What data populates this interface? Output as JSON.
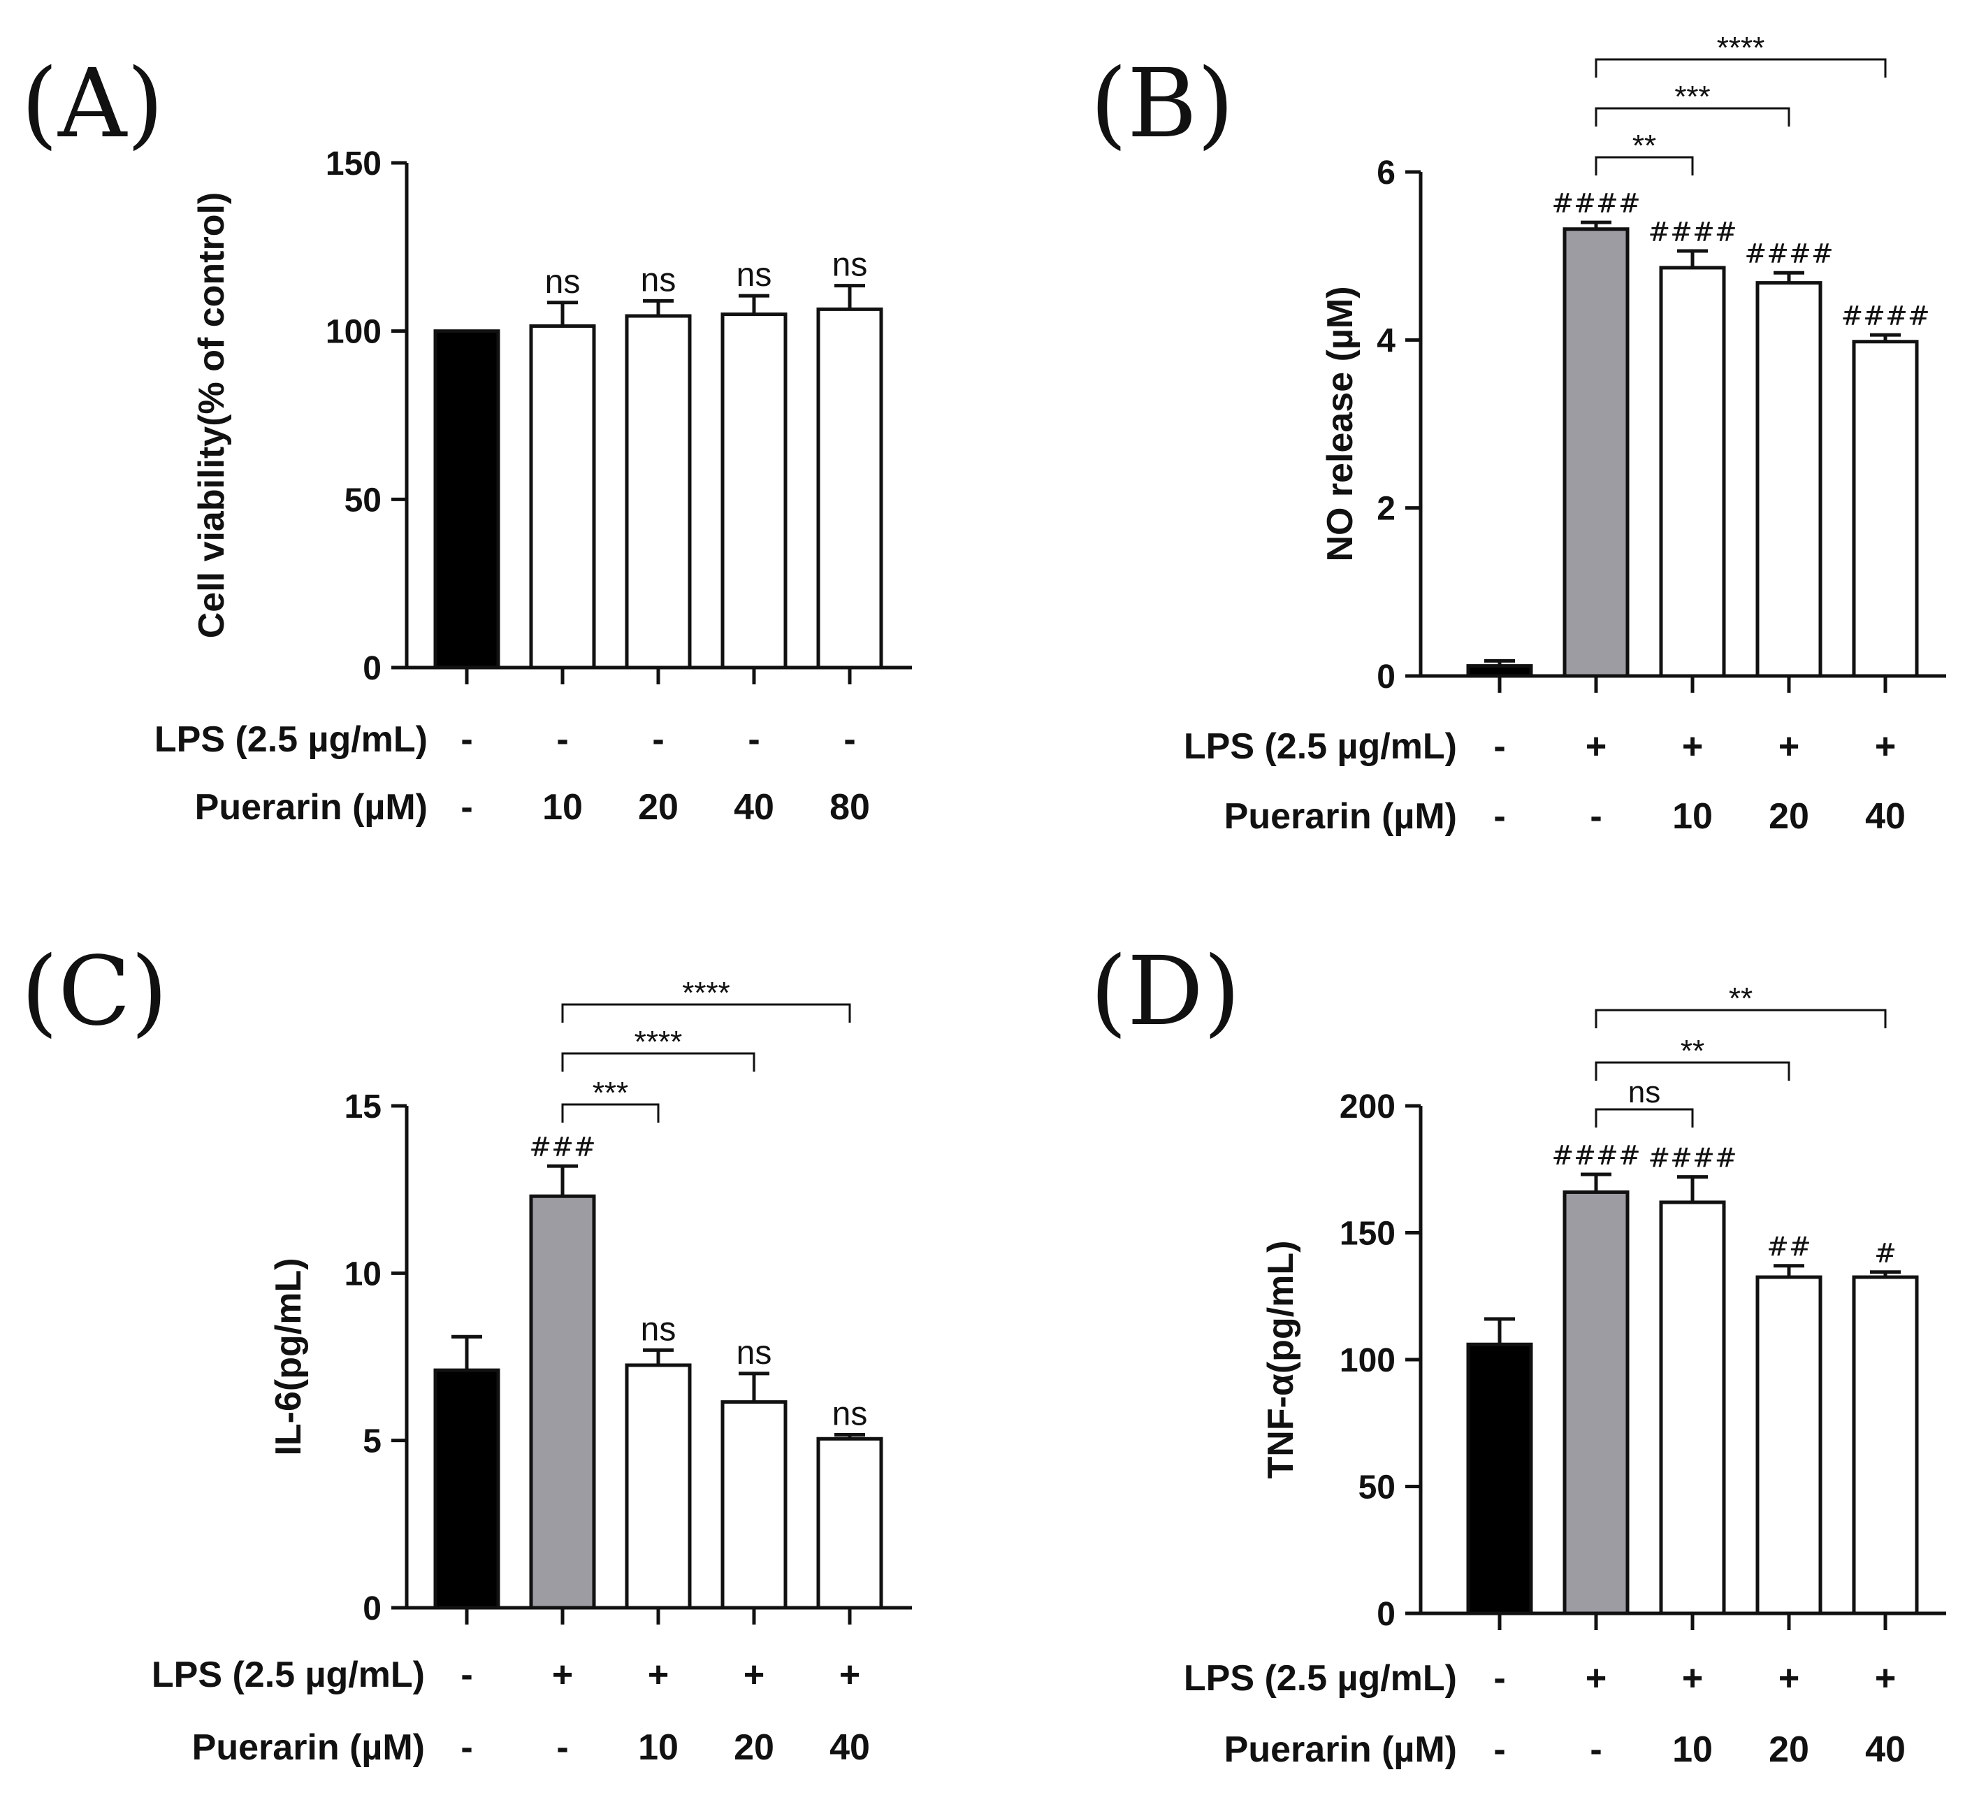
{
  "chart_data": [
    {
      "type": "bar",
      "panel": "(A)",
      "ylabel": "Cell viability(% of control)",
      "ylim": [
        0,
        150
      ],
      "yticks": [
        0,
        50,
        100,
        150
      ],
      "conditions": [
        {
          "label": "LPS (2.5 µg/mL)",
          "values": [
            "-",
            "-",
            "-",
            "-",
            "-"
          ]
        },
        {
          "label": "Puerarin (µM)",
          "values": [
            "-",
            "10",
            "20",
            "40",
            "80"
          ]
        }
      ],
      "bars": [
        {
          "value": 100,
          "error": 0,
          "fill": "#000000",
          "above": ""
        },
        {
          "value": 101.5,
          "error": 7,
          "fill": "#ffffff",
          "above": "ns"
        },
        {
          "value": 104.5,
          "error": 4.5,
          "fill": "#ffffff",
          "above": "ns"
        },
        {
          "value": 105,
          "error": 5.5,
          "fill": "#ffffff",
          "above": "ns"
        },
        {
          "value": 106.5,
          "error": 7,
          "fill": "#ffffff",
          "above": "ns"
        }
      ],
      "brackets": []
    },
    {
      "type": "bar",
      "panel": "(B)",
      "ylabel": "NO release (µM)",
      "ylim": [
        0,
        6
      ],
      "yticks": [
        0,
        2,
        4,
        6
      ],
      "conditions": [
        {
          "label": "LPS (2.5 µg/mL)",
          "values": [
            "-",
            "+",
            "+",
            "+",
            "+"
          ]
        },
        {
          "label": "Puerarin (µM)",
          "values": [
            "-",
            "-",
            "10",
            "20",
            "40"
          ]
        }
      ],
      "bars": [
        {
          "value": 0.12,
          "error": 0.06,
          "fill": "#000000",
          "above": ""
        },
        {
          "value": 5.32,
          "error": 0.08,
          "fill": "#9d9ca2",
          "above": "####"
        },
        {
          "value": 4.86,
          "error": 0.2,
          "fill": "#ffffff",
          "above": "####"
        },
        {
          "value": 4.68,
          "error": 0.12,
          "fill": "#ffffff",
          "above": "####"
        },
        {
          "value": 3.98,
          "error": 0.08,
          "fill": "#ffffff",
          "above": "####"
        }
      ],
      "brackets": [
        {
          "from": 1,
          "to": 2,
          "label": "**"
        },
        {
          "from": 1,
          "to": 3,
          "label": "***"
        },
        {
          "from": 1,
          "to": 4,
          "label": "****"
        }
      ]
    },
    {
      "type": "bar",
      "panel": "(C)",
      "ylabel": "IL-6(pg/mL)",
      "ylim": [
        0,
        15
      ],
      "yticks": [
        0,
        5,
        10,
        15
      ],
      "conditions": [
        {
          "label": "LPS (2.5 µg/mL)",
          "values": [
            "-",
            "+",
            "+",
            "+",
            "+"
          ]
        },
        {
          "label": "Puerarin (µM)",
          "values": [
            "-",
            "-",
            "10",
            "20",
            "40"
          ]
        }
      ],
      "bars": [
        {
          "value": 7.1,
          "error": 1.0,
          "fill": "#000000",
          "above": ""
        },
        {
          "value": 12.3,
          "error": 0.9,
          "fill": "#9d9ca2",
          "above": "###"
        },
        {
          "value": 7.25,
          "error": 0.45,
          "fill": "#ffffff",
          "above": "ns"
        },
        {
          "value": 6.15,
          "error": 0.85,
          "fill": "#ffffff",
          "above": "ns"
        },
        {
          "value": 5.05,
          "error": 0.12,
          "fill": "#ffffff",
          "above": "ns"
        }
      ],
      "brackets": [
        {
          "from": 1,
          "to": 2,
          "label": "***"
        },
        {
          "from": 1,
          "to": 3,
          "label": "****"
        },
        {
          "from": 1,
          "to": 4,
          "label": "****"
        }
      ]
    },
    {
      "type": "bar",
      "panel": "(D)",
      "ylabel": "TNF-α(pg/mL)",
      "ylim": [
        0,
        200
      ],
      "yticks": [
        0,
        50,
        100,
        150,
        200
      ],
      "conditions": [
        {
          "label": "LPS (2.5 µg/mL)",
          "values": [
            "-",
            "+",
            "+",
            "+",
            "+"
          ]
        },
        {
          "label": "Puerarin (µM)",
          "values": [
            "-",
            "-",
            "10",
            "20",
            "40"
          ]
        }
      ],
      "bars": [
        {
          "value": 106,
          "error": 10,
          "fill": "#000000",
          "above": ""
        },
        {
          "value": 166,
          "error": 7,
          "fill": "#9d9ca2",
          "above": "####"
        },
        {
          "value": 162,
          "error": 10,
          "fill": "#ffffff",
          "above": "####"
        },
        {
          "value": 132.5,
          "error": 4.5,
          "fill": "#ffffff",
          "above": "##"
        },
        {
          "value": 132.5,
          "error": 2,
          "fill": "#ffffff",
          "above": "#"
        }
      ],
      "brackets": [
        {
          "from": 1,
          "to": 2,
          "label": "ns"
        },
        {
          "from": 1,
          "to": 3,
          "label": "**"
        },
        {
          "from": 1,
          "to": 4,
          "label": "**"
        }
      ]
    }
  ]
}
